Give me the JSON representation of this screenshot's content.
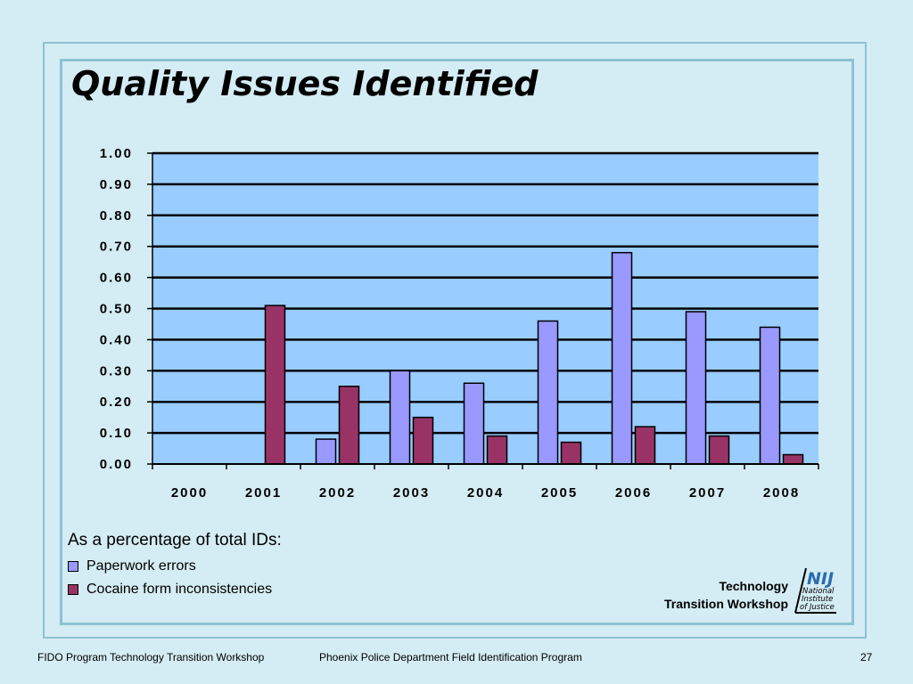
{
  "slide": {
    "title": "Quality Issues Identified",
    "legend_caption": "As a percentage of total IDs:",
    "brand_line1": "Technology",
    "brand_line2": "Transition Workshop",
    "logo_text": "NIJ",
    "logo_subtext": [
      "National",
      "Institute",
      "of Justice"
    ],
    "footer_left": "FIDO Program Technology Transition Workshop",
    "footer_center": "Phoenix Police Department Field Identification Program",
    "page_number": "27"
  },
  "colors": {
    "plot_background": "#99ccff",
    "paperwork": "#9999ff",
    "cocaine": "#993366"
  },
  "chart_data": {
    "type": "bar",
    "categories": [
      "2000",
      "2001",
      "2002",
      "2003",
      "2004",
      "2005",
      "2006",
      "2007",
      "2008"
    ],
    "series": [
      {
        "name": "Paperwork errors",
        "values": [
          null,
          null,
          0.08,
          0.3,
          0.26,
          0.46,
          0.68,
          0.49,
          0.44
        ]
      },
      {
        "name": "Cocaine form inconsistencies",
        "values": [
          null,
          0.51,
          0.25,
          0.15,
          0.09,
          0.07,
          0.12,
          0.09,
          0.03
        ]
      }
    ],
    "yticks": [
      "0.00",
      "0.10",
      "0.20",
      "0.30",
      "0.40",
      "0.50",
      "0.60",
      "0.70",
      "0.80",
      "0.90",
      "1.00"
    ],
    "ylim": [
      0,
      1
    ],
    "grid": true,
    "legend_position": "bottom-left"
  }
}
